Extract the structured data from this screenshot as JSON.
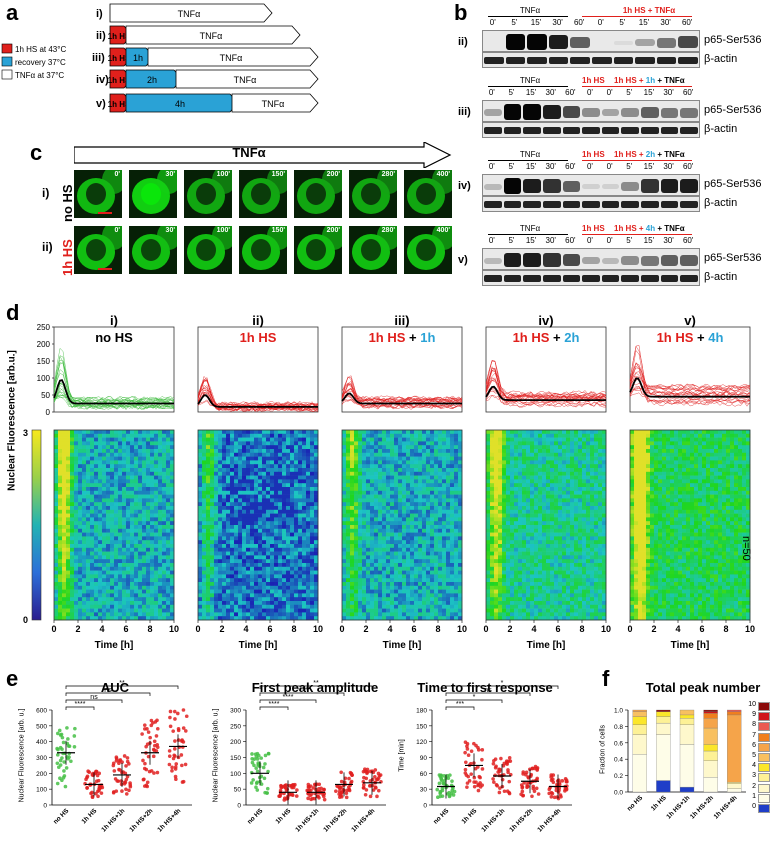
{
  "panels": {
    "a": "a",
    "b": "b",
    "c": "c",
    "d": "d",
    "e": "e",
    "f": "f"
  },
  "panel_a": {
    "rows": [
      {
        "label": "i)",
        "segments": [
          {
            "text": "TNFα",
            "type": "tnf"
          }
        ]
      },
      {
        "label": "ii)",
        "segments": [
          {
            "text": "1h HS",
            "type": "hs"
          },
          {
            "text": "TNFα",
            "type": "tnf"
          }
        ]
      },
      {
        "label": "iii)",
        "segments": [
          {
            "text": "1h HS",
            "type": "hs"
          },
          {
            "text": "1h",
            "type": "rec"
          },
          {
            "text": "TNFα",
            "type": "tnf"
          }
        ]
      },
      {
        "label": "iv)",
        "segments": [
          {
            "text": "1h HS",
            "type": "hs"
          },
          {
            "text": "2h",
            "type": "rec"
          },
          {
            "text": "TNFα",
            "type": "tnf"
          }
        ]
      },
      {
        "label": "v)",
        "segments": [
          {
            "text": "1h HS",
            "type": "hs"
          },
          {
            "text": "4h",
            "type": "rec"
          },
          {
            "text": "TNFα",
            "type": "tnf"
          }
        ]
      }
    ],
    "legend": [
      {
        "text": "1h HS at 43°C",
        "color": "#e0201c"
      },
      {
        "text": "recovery 37°C",
        "color": "#2aa2d6"
      },
      {
        "text": "TNFα at 37°C",
        "color": "#ffffff"
      }
    ]
  },
  "panel_b": {
    "blots": [
      {
        "label": "ii)",
        "header1": "TNFα",
        "header2": "1h HS + TNFα",
        "lanes": [
          "0'",
          "5'",
          "15'",
          "30'",
          "60'",
          "0'",
          "5'",
          "15'",
          "30'",
          "60'"
        ],
        "band1": "p65-Ser536",
        "band2": "β-actin"
      },
      {
        "label": "iii)",
        "header1": "TNFα",
        "header_hs": "1h HS",
        "header2a": "1h HS + ",
        "header2b": "1h",
        "header2c": " + TNFα",
        "lanes": [
          "0'",
          "5'",
          "15'",
          "30'",
          "60'",
          "0'",
          "0'",
          "5'",
          "15'",
          "30'",
          "60'"
        ],
        "band1": "p65-Ser536",
        "band2": "β-actin"
      },
      {
        "label": "iv)",
        "header1": "TNFα",
        "header_hs": "1h HS",
        "header2a": "1h HS + ",
        "header2b": "2h",
        "header2c": " + TNFα",
        "lanes": [
          "0'",
          "5'",
          "15'",
          "30'",
          "60'",
          "0'",
          "0'",
          "5'",
          "15'",
          "30'",
          "60'"
        ],
        "band1": "p65-Ser536",
        "band2": "β-actin"
      },
      {
        "label": "v)",
        "header1": "TNFα",
        "header_hs": "1h HS",
        "header2a": "1h HS + ",
        "header2b": "4h",
        "header2c": " + TNFα",
        "lanes": [
          "0'",
          "5'",
          "15'",
          "30'",
          "60'",
          "0'",
          "0'",
          "5'",
          "15'",
          "30'",
          "60'"
        ],
        "band1": "p65-Ser536",
        "band2": "β-actin"
      }
    ]
  },
  "panel_c": {
    "arrow": "TNFα",
    "row1_label": "i)",
    "row1_cond": "no HS",
    "row2_label": "ii)",
    "row2_cond": "1h HS",
    "times": [
      "0'",
      "30'",
      "100'",
      "150'",
      "200'",
      "280'",
      "400'"
    ]
  },
  "panel_d": {
    "titles": [
      {
        "roman": "i)",
        "a": "no HS",
        "b": "",
        "c": ""
      },
      {
        "roman": "ii)",
        "a": "1h HS",
        "b": "",
        "c": ""
      },
      {
        "roman": "iii)",
        "a": "1h HS",
        "b": " + ",
        "c": "1h"
      },
      {
        "roman": "iv)",
        "a": "1h HS",
        "b": " + ",
        "c": "2h"
      },
      {
        "roman": "v)",
        "a": "1h HS",
        "b": " + ",
        "c": "4h"
      }
    ],
    "ylabel": "Nuclear Fluorescence [arb.u.]",
    "yticks": [
      "250",
      "200",
      "150",
      "100",
      "50",
      "0"
    ],
    "colorbar_max": "3",
    "colorbar_min": "0",
    "xticks": [
      "0",
      "2",
      "4",
      "6",
      "8",
      "10"
    ],
    "xlabel": "Time [h]",
    "n_label": "n=50"
  },
  "panel_e": {
    "titles": [
      "AUC",
      "First peak amplitude",
      "Time to first response"
    ],
    "ylabels": [
      "Nuclear Fluorescence [arb. u.]",
      "Nuclear Fluorescence [arb. u.]",
      "Time [min]"
    ],
    "categories": [
      "no HS",
      "1h HS",
      "1h HS+1h",
      "1h HS+2h",
      "1h HS+4h"
    ],
    "auc_yticks": [
      "600",
      "500",
      "400",
      "300",
      "200",
      "100",
      "0"
    ],
    "amp_yticks": [
      "300",
      "250",
      "200",
      "150",
      "100",
      "50",
      "0"
    ],
    "time_yticks": [
      "180",
      "150",
      "120",
      "90",
      "60",
      "30",
      "0"
    ],
    "auc_sig": [
      "**",
      "ns",
      "ns",
      "****"
    ],
    "amp_sig": [
      "**",
      "****",
      "****",
      "****"
    ],
    "time_sig": [
      "*",
      "ns",
      "*",
      "***"
    ]
  },
  "panel_f": {
    "title": "Total peak number",
    "ylabel": "Fraction of cells",
    "yticks": [
      "1.0",
      "0.8",
      "0.6",
      "0.4",
      "0.2",
      "0.0"
    ],
    "categories": [
      "no HS",
      "1h HS",
      "1h HS+1h",
      "1h HS+2h",
      "1h HS+4h"
    ],
    "legend": [
      {
        "k": "10",
        "color": "#8b0a0a"
      },
      {
        "k": "9",
        "color": "#d0141a"
      },
      {
        "k": "8",
        "color": "#ea5a52"
      },
      {
        "k": "7",
        "color": "#f07f1e"
      },
      {
        "k": "6",
        "color": "#f5a44a"
      },
      {
        "k": "5",
        "color": "#f8c060"
      },
      {
        "k": "4",
        "color": "#fbe62a"
      },
      {
        "k": "3",
        "color": "#fdf196"
      },
      {
        "k": "2",
        "color": "#fef8cc"
      },
      {
        "k": "1",
        "color": "#fefde8"
      },
      {
        "k": "0",
        "color": "#1f3ec8"
      }
    ]
  },
  "chart_data": [
    {
      "type": "scatter",
      "title": "AUC",
      "ylabel": "Nuclear Fluorescence [arb. u.]",
      "categories": [
        "no HS",
        "1h HS",
        "1h HS+1h",
        "1h HS+2h",
        "1h HS+4h"
      ],
      "means": [
        330,
        130,
        190,
        330,
        370
      ],
      "ylim": [
        0,
        600
      ]
    },
    {
      "type": "scatter",
      "title": "First peak amplitude",
      "ylabel": "Nuclear Fluorescence [arb. u.]",
      "categories": [
        "no HS",
        "1h HS",
        "1h HS+1h",
        "1h HS+2h",
        "1h HS+4h"
      ],
      "means": [
        100,
        40,
        40,
        65,
        70
      ],
      "ylim": [
        0,
        300
      ]
    },
    {
      "type": "scatter",
      "title": "Time to first response",
      "ylabel": "Time [min]",
      "categories": [
        "no HS",
        "1h HS",
        "1h HS+1h",
        "1h HS+2h",
        "1h HS+4h"
      ],
      "means": [
        35,
        75,
        55,
        45,
        35
      ],
      "ylim": [
        0,
        180
      ]
    },
    {
      "type": "bar",
      "title": "Total peak number",
      "ylabel": "Fraction of cells",
      "categories": [
        "no HS",
        "1h HS",
        "1h HS+1h",
        "1h HS+2h",
        "1h HS+4h"
      ],
      "series": [
        {
          "name": "0",
          "values": [
            0.0,
            0.14,
            0.06,
            0.0,
            0.0
          ]
        },
        {
          "name": "1",
          "values": [
            0.46,
            0.56,
            0.52,
            0.18,
            0.04
          ]
        },
        {
          "name": "2",
          "values": [
            0.24,
            0.14,
            0.24,
            0.2,
            0.06
          ]
        },
        {
          "name": "3",
          "values": [
            0.12,
            0.08,
            0.08,
            0.12,
            0.02
          ]
        },
        {
          "name": "4",
          "values": [
            0.1,
            0.06,
            0.04,
            0.08,
            0.0
          ]
        },
        {
          "name": "5",
          "values": [
            0.06,
            0.0,
            0.06,
            0.2,
            0.0
          ]
        },
        {
          "name": "6",
          "values": [
            0.02,
            0.0,
            0.0,
            0.12,
            0.82
          ]
        },
        {
          "name": "7",
          "values": [
            0.0,
            0.0,
            0.0,
            0.06,
            0.04
          ]
        },
        {
          "name": "8",
          "values": [
            0.0,
            0.0,
            0.0,
            0.0,
            0.02
          ]
        },
        {
          "name": "9",
          "values": [
            0.0,
            0.0,
            0.0,
            0.02,
            0.0
          ]
        },
        {
          "name": "10",
          "values": [
            0.0,
            0.02,
            0.0,
            0.02,
            0.0
          ]
        }
      ],
      "ylim": [
        0,
        1.0
      ]
    }
  ]
}
